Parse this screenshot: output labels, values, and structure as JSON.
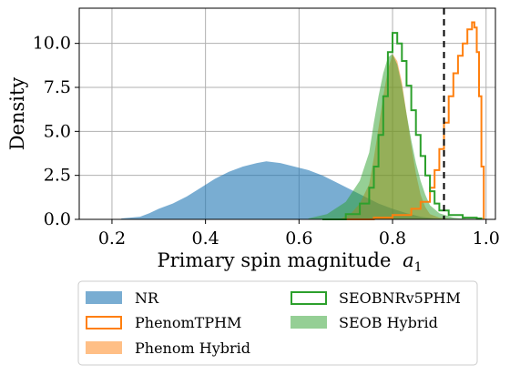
{
  "chart_data": {
    "type": "histogram",
    "xlabel": "Primary spin magnitude",
    "xlabel_symbol": "a",
    "xlabel_subscript": "1",
    "ylabel": "Density",
    "xlim": [
      0.13,
      1.02
    ],
    "ylim": [
      0,
      12
    ],
    "xticks": [
      0.2,
      0.4,
      0.6,
      0.8,
      1.0
    ],
    "xtick_labels": [
      "0.2",
      "0.4",
      "0.6",
      "0.8",
      "1.0"
    ],
    "yticks": [
      0,
      2.5,
      5,
      7.5,
      10
    ],
    "ytick_labels": [
      "0.0",
      "2.5",
      "5.0",
      "7.5",
      "10.0"
    ],
    "grid": true,
    "legend_position": "below plot, two columns",
    "reference_line": {
      "x": 0.91,
      "style": "dashed",
      "color": "#000000"
    },
    "series": [
      {
        "name": "NR",
        "style": "filled",
        "color": "#1f77b4",
        "opacity": 0.6,
        "points": [
          [
            0.22,
            0.05
          ],
          [
            0.26,
            0.15
          ],
          [
            0.28,
            0.35
          ],
          [
            0.3,
            0.6
          ],
          [
            0.33,
            0.9
          ],
          [
            0.36,
            1.3
          ],
          [
            0.39,
            1.8
          ],
          [
            0.42,
            2.3
          ],
          [
            0.45,
            2.7
          ],
          [
            0.48,
            3.0
          ],
          [
            0.51,
            3.2
          ],
          [
            0.53,
            3.3
          ],
          [
            0.56,
            3.2
          ],
          [
            0.59,
            3.0
          ],
          [
            0.62,
            2.8
          ],
          [
            0.65,
            2.5
          ],
          [
            0.68,
            2.1
          ],
          [
            0.71,
            1.7
          ],
          [
            0.74,
            1.3
          ],
          [
            0.77,
            0.9
          ],
          [
            0.8,
            0.6
          ],
          [
            0.83,
            0.35
          ],
          [
            0.86,
            0.15
          ],
          [
            0.89,
            0.05
          ],
          [
            0.92,
            0.0
          ]
        ]
      },
      {
        "name": "PhenomTPHM",
        "style": "step",
        "color": "#ff7f0e",
        "points": [
          [
            0.7,
            0.0
          ],
          [
            0.76,
            0.1
          ],
          [
            0.8,
            0.25
          ],
          [
            0.84,
            0.6
          ],
          [
            0.86,
            1.0
          ],
          [
            0.88,
            1.8
          ],
          [
            0.89,
            2.8
          ],
          [
            0.9,
            4.0
          ],
          [
            0.91,
            5.5
          ],
          [
            0.92,
            7.0
          ],
          [
            0.93,
            8.3
          ],
          [
            0.94,
            9.3
          ],
          [
            0.95,
            10.0
          ],
          [
            0.96,
            10.8
          ],
          [
            0.97,
            11.2
          ],
          [
            0.975,
            10.9
          ],
          [
            0.98,
            9.5
          ],
          [
            0.985,
            7.0
          ],
          [
            0.99,
            3.0
          ],
          [
            0.995,
            0.0
          ]
        ]
      },
      {
        "name": "Phenom Hybrid",
        "style": "filled",
        "color": "#ff7f0e",
        "opacity": 0.5,
        "points": [
          [
            0.69,
            0.05
          ],
          [
            0.71,
            0.3
          ],
          [
            0.73,
            0.9
          ],
          [
            0.75,
            2.0
          ],
          [
            0.76,
            3.5
          ],
          [
            0.77,
            5.2
          ],
          [
            0.78,
            7.0
          ],
          [
            0.79,
            8.5
          ],
          [
            0.8,
            9.4
          ],
          [
            0.81,
            9.0
          ],
          [
            0.82,
            7.8
          ],
          [
            0.83,
            6.0
          ],
          [
            0.84,
            4.2
          ],
          [
            0.85,
            2.6
          ],
          [
            0.86,
            1.4
          ],
          [
            0.87,
            0.7
          ],
          [
            0.88,
            0.3
          ],
          [
            0.9,
            0.1
          ],
          [
            0.92,
            0.03
          ],
          [
            0.94,
            0.0
          ]
        ]
      },
      {
        "name": "SEOBNRv5PHM",
        "style": "step",
        "color": "#2ca02c",
        "points": [
          [
            0.65,
            0.0
          ],
          [
            0.7,
            0.3
          ],
          [
            0.73,
            0.9
          ],
          [
            0.75,
            1.8
          ],
          [
            0.76,
            3.0
          ],
          [
            0.77,
            4.8
          ],
          [
            0.78,
            7.0
          ],
          [
            0.79,
            9.5
          ],
          [
            0.8,
            10.6
          ],
          [
            0.81,
            10.0
          ],
          [
            0.82,
            9.0
          ],
          [
            0.83,
            7.6
          ],
          [
            0.84,
            6.2
          ],
          [
            0.85,
            4.8
          ],
          [
            0.86,
            3.6
          ],
          [
            0.87,
            2.5
          ],
          [
            0.88,
            1.6
          ],
          [
            0.89,
            0.9
          ],
          [
            0.9,
            0.5
          ],
          [
            0.92,
            0.25
          ],
          [
            0.95,
            0.1
          ],
          [
            0.98,
            0.05
          ],
          [
            0.99,
            0.0
          ]
        ]
      },
      {
        "name": "SEOB Hybrid",
        "style": "filled",
        "color": "#2ca02c",
        "opacity": 0.5,
        "points": [
          [
            0.62,
            0.05
          ],
          [
            0.66,
            0.3
          ],
          [
            0.7,
            1.0
          ],
          [
            0.73,
            2.2
          ],
          [
            0.75,
            3.8
          ],
          [
            0.76,
            5.5
          ],
          [
            0.77,
            7.0
          ],
          [
            0.78,
            8.3
          ],
          [
            0.79,
            9.2
          ],
          [
            0.8,
            9.4
          ],
          [
            0.81,
            8.8
          ],
          [
            0.82,
            7.6
          ],
          [
            0.83,
            6.0
          ],
          [
            0.84,
            4.5
          ],
          [
            0.85,
            3.2
          ],
          [
            0.86,
            2.2
          ],
          [
            0.87,
            1.4
          ],
          [
            0.88,
            0.8
          ],
          [
            0.9,
            0.35
          ],
          [
            0.93,
            0.1
          ],
          [
            0.96,
            0.02
          ],
          [
            0.98,
            0.0
          ]
        ]
      }
    ]
  }
}
